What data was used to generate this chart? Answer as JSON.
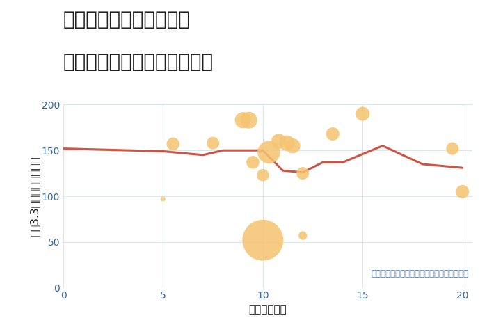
{
  "title_line1": "神奈川県鎌倉市小袋谷の",
  "title_line2": "駅距離別中古マンション価格",
  "xlabel": "駅距離（分）",
  "ylabel": "坪（3.3㎡）単価（万円）",
  "scatter_x": [
    5.5,
    7.5,
    9.0,
    9.3,
    9.5,
    10.0,
    10.3,
    10.8,
    11.2,
    11.5,
    12.0,
    13.5,
    15.0,
    10.0,
    12.0,
    19.5,
    20.0,
    5.0
  ],
  "scatter_y": [
    157,
    158,
    183,
    183,
    137,
    123,
    148,
    160,
    158,
    155,
    125,
    168,
    190,
    52,
    57,
    152,
    105,
    97
  ],
  "scatter_size": [
    180,
    170,
    280,
    300,
    180,
    160,
    550,
    240,
    260,
    240,
    170,
    190,
    210,
    1800,
    80,
    170,
    190,
    25
  ],
  "line_x": [
    0,
    5,
    7,
    8,
    9,
    10,
    11,
    12,
    13,
    14,
    16,
    18,
    19,
    20
  ],
  "line_y": [
    152,
    149,
    145,
    150,
    150,
    150,
    128,
    126,
    137,
    137,
    155,
    135,
    133,
    131
  ],
  "scatter_color": "#F5C470",
  "scatter_alpha": 0.85,
  "line_color": "#CC5544",
  "line_width": 2.2,
  "background_color": "#FFFFFF",
  "grid_color": "#B8CCDD",
  "annotation": "円の大きさは、取引のあった物件面積を示す",
  "annotation_color": "#5577AA",
  "xlim": [
    0,
    20.5
  ],
  "ylim": [
    0,
    200
  ],
  "xticks": [
    0,
    5,
    10,
    15,
    20
  ],
  "yticks": [
    0,
    50,
    100,
    150,
    200
  ],
  "title_fontsize": 20,
  "axis_fontsize": 11,
  "tick_fontsize": 10,
  "tick_color": "#336699"
}
